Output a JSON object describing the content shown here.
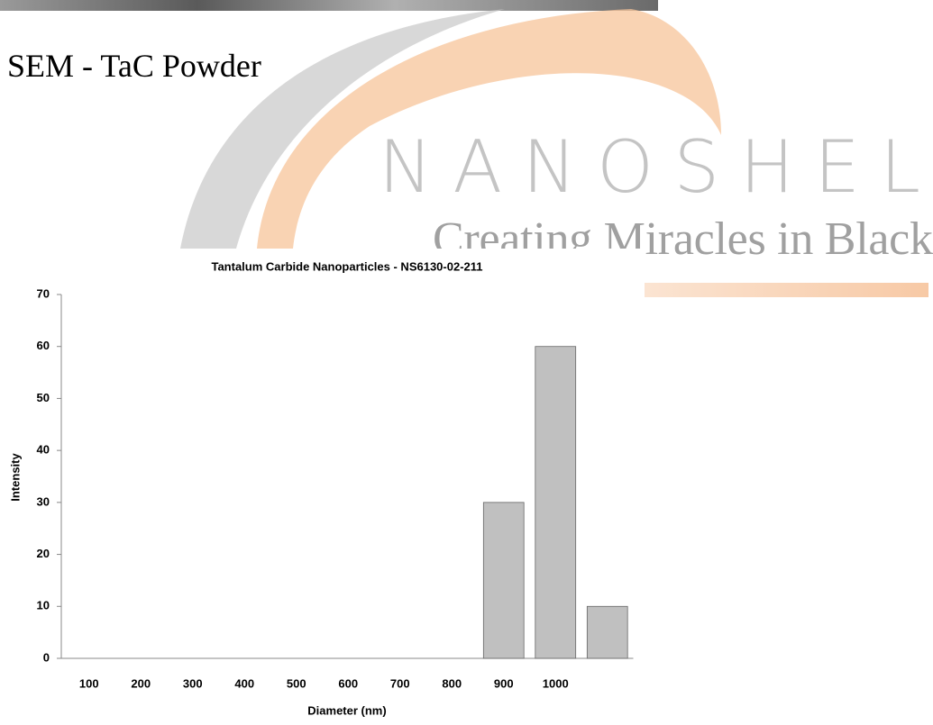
{
  "heading": "SEM - TaC Powder",
  "watermark": {
    "brand": "NANOSHEL",
    "tagline": "Creating Miracles in Black"
  },
  "chart_data": {
    "type": "bar",
    "title": "Tantalum Carbide Nanoparticles - NS6130-02-211",
    "x_label": "Diameter (nm)",
    "y_label": "Intensity",
    "categories": [
      "100",
      "200",
      "300",
      "400",
      "500",
      "600",
      "700",
      "800",
      "900",
      "1000",
      null
    ],
    "values": [
      0,
      0,
      0,
      0,
      0,
      0,
      0,
      0,
      30,
      60,
      10
    ],
    "color": "#c0c0c0",
    "ylim": [
      0,
      70
    ],
    "yticks": [
      0,
      10,
      20,
      30,
      40,
      50,
      60,
      70
    ],
    "grid": false
  }
}
